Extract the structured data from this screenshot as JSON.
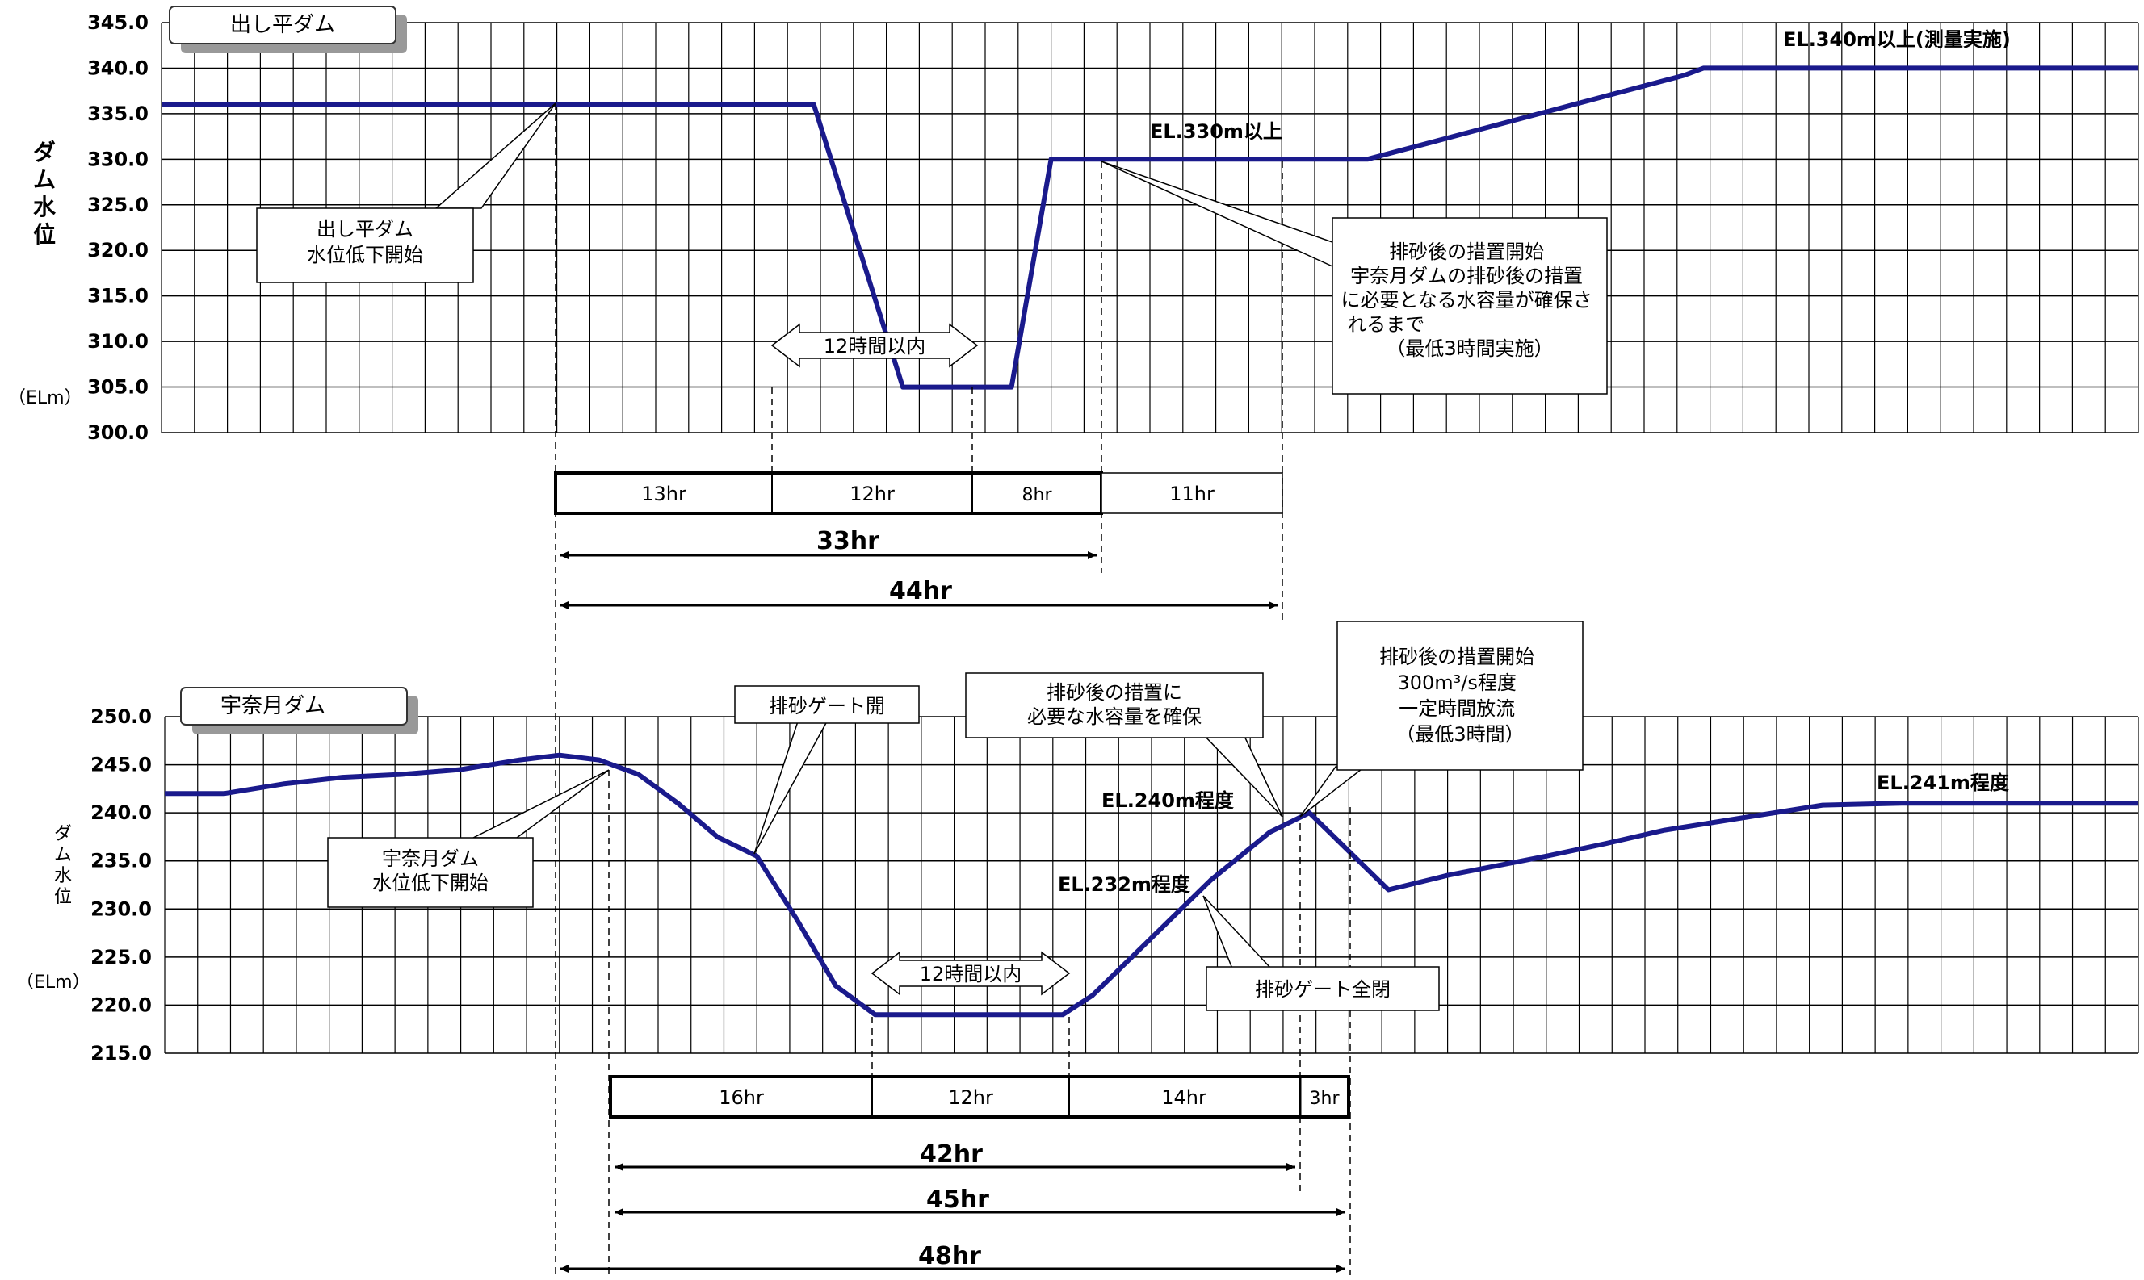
{
  "chart_data": [
    {
      "type": "line",
      "title": "出し平ダム",
      "ylabel": "ダム水位",
      "yunit": "（ELm）",
      "ylim": [
        300,
        345
      ],
      "ytick_step": 5,
      "grid": true,
      "series_color": "#1a1a8c",
      "series": [
        {
          "x": [
            0,
            27,
            33,
            37.5,
            43,
            45,
            49,
            53,
            57,
            61,
            65,
            69,
            73,
            77,
            78,
            100
          ],
          "y": [
            336.0,
            336.0,
            336.0,
            305.0,
            305.0,
            330.0,
            330.0,
            330.0,
            330.0,
            330.0,
            332.3,
            334.6,
            336.9,
            339.2,
            340.0,
            340.0
          ]
        }
      ],
      "annotations": {
        "start": "出し平ダム\n水位低下開始",
        "window": "12時間以内",
        "el330": "EL.330m以上",
        "el340": "EL.340m以上(測量実施)",
        "measure": "排砂後の措置開始\n宇奈月ダムの排砂後の措置\nに必要となる水容量が確保さ\nれるまで\n（最低3時間実施）"
      },
      "segments": [
        "13hr",
        "12hr",
        "8hr",
        "11hr"
      ],
      "spans": [
        "33hr",
        "44hr"
      ]
    },
    {
      "type": "line",
      "title": "宇奈月ダム",
      "ylabel": "ダム水位",
      "yunit": "（ELm）",
      "ylim": [
        215,
        250
      ],
      "ytick_step": 5,
      "grid": true,
      "series_color": "#1a1a8c",
      "series": [
        {
          "x": [
            0,
            3,
            6,
            9,
            12,
            15,
            18,
            20,
            22,
            24,
            26,
            28,
            30,
            32,
            34,
            36,
            38,
            42,
            45.5,
            47,
            50,
            53,
            56,
            58,
            62,
            65,
            70,
            73,
            76,
            80,
            84,
            88,
            90,
            100
          ],
          "y": [
            242.0,
            242.0,
            243.0,
            243.7,
            244.0,
            244.5,
            245.5,
            246.0,
            245.5,
            244.0,
            241.0,
            237.5,
            235.5,
            229.0,
            222.0,
            219.0,
            219.0,
            219.0,
            219.0,
            221.0,
            227.0,
            233.0,
            238.0,
            240.0,
            232.0,
            233.5,
            235.5,
            236.8,
            238.2,
            239.5,
            240.8,
            241.0,
            241.0,
            241.0
          ]
        }
      ],
      "annotations": {
        "start": "宇奈月ダム\n水位低下開始",
        "gate_open": "排砂ゲート開",
        "window": "12時間以内",
        "capacity": "排砂後の措置に\n必要な水容量を確保",
        "el240": "EL.240m程度",
        "el232": "EL.232m程度",
        "gate_close": "排砂ゲート全閉",
        "measure": "排砂後の措置開始\n300m³/s程度\n一定時間放流\n（最低3時間）",
        "el241": "EL.241m程度"
      },
      "segments": [
        "16hr",
        "12hr",
        "14hr",
        "3hr"
      ],
      "spans": [
        "42hr",
        "45hr",
        "48hr"
      ]
    }
  ]
}
